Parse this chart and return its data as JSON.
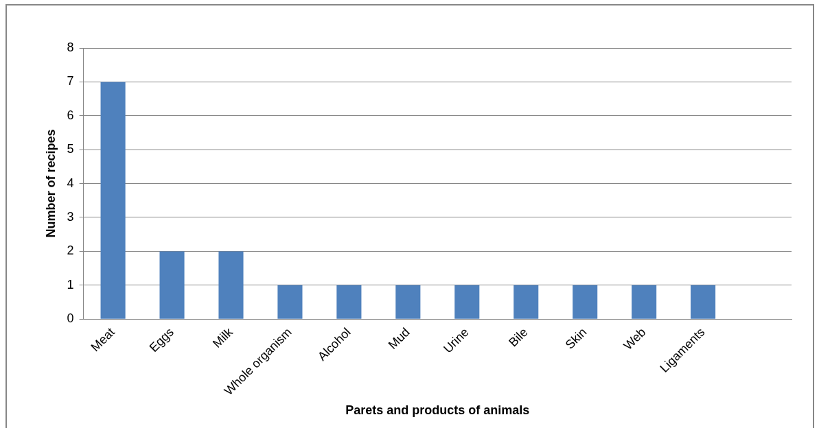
{
  "chart_data": {
    "type": "bar",
    "xlabel": "Parets and products of animals",
    "ylabel": "Number of recipes",
    "categories": [
      "Meat",
      "Eggs",
      "Milk",
      "Whole organism",
      "Alcohol",
      "Mud",
      "Urine",
      "Bile",
      "Skin",
      "Web",
      "Ligaments",
      null
    ],
    "values": [
      7,
      2,
      2,
      1,
      1,
      1,
      1,
      1,
      1,
      1,
      1,
      null
    ],
    "color": "#4f81bd",
    "ylim": [
      0,
      8
    ],
    "yticks": [
      0,
      1,
      2,
      3,
      4,
      5,
      6,
      7,
      8
    ],
    "grid": "y",
    "legend": false
  }
}
